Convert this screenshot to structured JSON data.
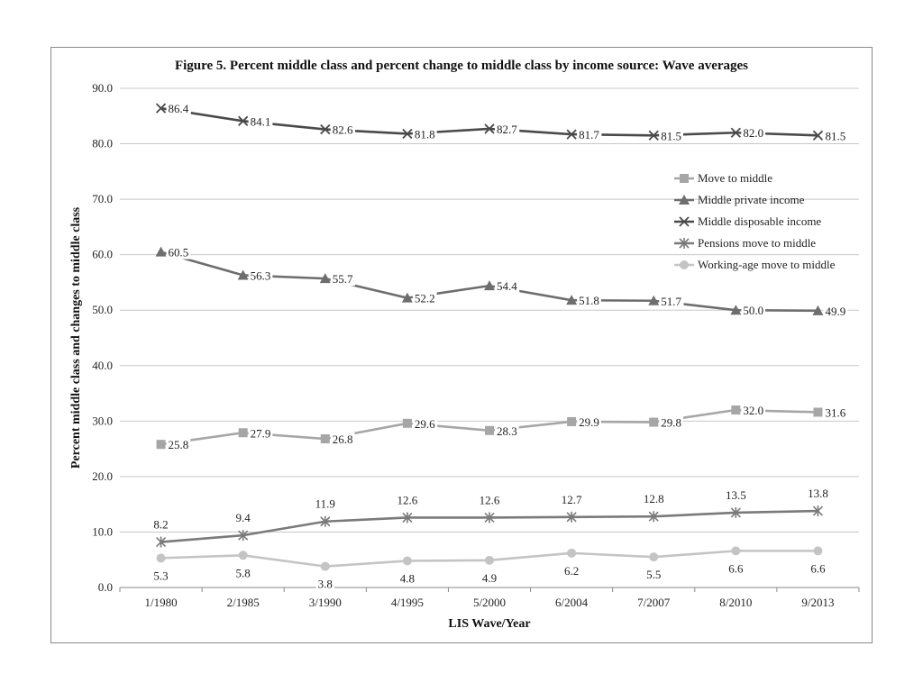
{
  "chart_data": {
    "type": "line",
    "title": "Figure 5. Percent middle class and percent change to middle class by income source: Wave averages",
    "xlabel": "LIS Wave/Year",
    "ylabel": "Percent middle class and changes to middle class",
    "ylim": [
      0,
      90
    ],
    "yticks": [
      "0.0",
      "10.0",
      "20.0",
      "30.0",
      "40.0",
      "50.0",
      "60.0",
      "70.0",
      "80.0",
      "90.0"
    ],
    "grid": true,
    "legend_position": "right",
    "categories": [
      "1/1980",
      "2/1985",
      "3/1990",
      "4/1995",
      "5/2000",
      "6/2004",
      "7/2007",
      "8/2010",
      "9/2013"
    ],
    "series": [
      {
        "name": "Move to middle",
        "marker": "square",
        "color": "#a6a6a6",
        "values": [
          25.8,
          27.9,
          26.8,
          29.6,
          28.3,
          29.9,
          29.8,
          32.0,
          31.6
        ],
        "labels": [
          "25.8",
          "27.9",
          "26.8",
          "29.6",
          "28.3",
          "29.9",
          "29.8",
          "32.0",
          "31.6"
        ]
      },
      {
        "name": "Middle private income",
        "marker": "triangle",
        "color": "#6e6e6e",
        "values": [
          60.5,
          56.3,
          55.7,
          52.2,
          54.4,
          51.8,
          51.7,
          50.0,
          49.9
        ],
        "labels": [
          "60.5",
          "56.3",
          "55.7",
          "52.2",
          "54.4",
          "51.8",
          "51.7",
          "50.0",
          "49.9"
        ]
      },
      {
        "name": "Middle disposable income",
        "marker": "x",
        "color": "#4a4a4a",
        "values": [
          86.4,
          84.1,
          82.6,
          81.8,
          82.7,
          81.7,
          81.5,
          82.0,
          81.5
        ],
        "labels": [
          "86.4",
          "84.1",
          "82.6",
          "81.8",
          "82.7",
          "81.7",
          "81.5",
          "82.0",
          "81.5"
        ]
      },
      {
        "name": "Pensions move to middle",
        "marker": "asterisk",
        "color": "#7a7a7a",
        "values": [
          8.2,
          9.4,
          11.9,
          12.6,
          12.6,
          12.7,
          12.8,
          13.5,
          13.8
        ],
        "labels": [
          "8.2",
          "9.4",
          "11.9",
          "12.6",
          "12.6",
          "12.7",
          "12.8",
          "13.5",
          "13.8"
        ]
      },
      {
        "name": "Working-age move to middle",
        "marker": "circle",
        "color": "#c4c4c4",
        "values": [
          5.3,
          5.8,
          3.8,
          4.8,
          4.9,
          6.2,
          5.5,
          6.6,
          6.6
        ],
        "labels": [
          "5.3",
          "5.8",
          "3.8",
          "4.8",
          "4.9",
          "6.2",
          "5.5",
          "6.6",
          "6.6"
        ]
      }
    ]
  }
}
